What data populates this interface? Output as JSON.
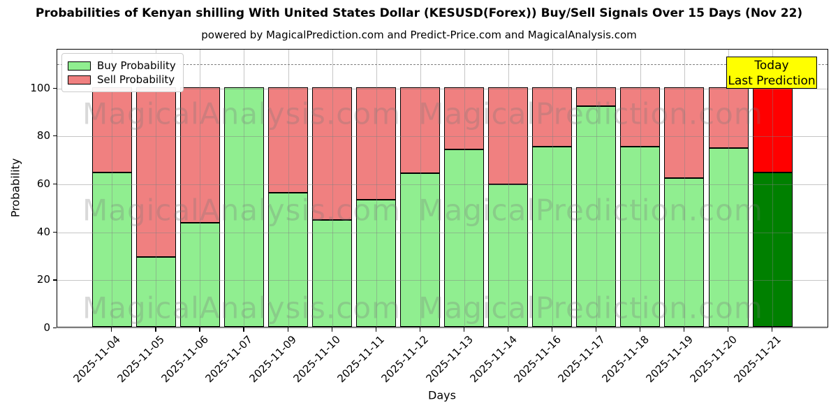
{
  "header": {
    "title": "Probabilities of Kenyan shilling With United States Dollar (KESUSD(Forex)) Buy/Sell Signals Over 15 Days (Nov 22)",
    "subtitle": "powered by MagicalPrediction.com and Predict-Price.com and MagicalAnalysis.com"
  },
  "axes": {
    "x_label": "Days",
    "y_label": "Probability",
    "y_ticks": [
      0,
      20,
      40,
      60,
      80,
      100
    ],
    "y_max": 116.2,
    "dashed_line_y": 110
  },
  "legend": {
    "items": [
      {
        "label": "Buy Probability",
        "color": "#90EE90"
      },
      {
        "label": "Sell Probability",
        "color": "#F08080"
      }
    ]
  },
  "annotation": {
    "line1": "Today",
    "line2": "Last Prediction",
    "bg_color": "#FFFF00"
  },
  "watermarks": {
    "left_text": "MagicalAnalysis.com",
    "right_text": "MagicalPrediction.com"
  },
  "chart_data": {
    "type": "bar",
    "stacked": true,
    "title": "Probabilities of Kenyan shilling With United States Dollar (KESUSD(Forex)) Buy/Sell Signals Over 15 Days (Nov 22)",
    "xlabel": "Days",
    "ylabel": "Probability",
    "ylim": [
      0,
      116.2
    ],
    "grid": true,
    "legend_position": "upper left",
    "categories": [
      "2025-11-04",
      "2025-11-05",
      "2025-11-06",
      "2025-11-07",
      "2025-11-09",
      "2025-11-10",
      "2025-11-11",
      "2025-11-12",
      "2025-11-13",
      "2025-11-14",
      "2025-11-16",
      "2025-11-17",
      "2025-11-18",
      "2025-11-19",
      "2025-11-20",
      "2025-11-21"
    ],
    "series": [
      {
        "name": "Buy Probability",
        "values": [
          64.5,
          29,
          43.5,
          100,
          56,
          44.5,
          53,
          64,
          74,
          59.5,
          75,
          92,
          75,
          62,
          74.5,
          64.5
        ]
      },
      {
        "name": "Sell Probability",
        "values": [
          35.5,
          71,
          56.5,
          0,
          44,
          55.5,
          47,
          36,
          26,
          40.5,
          25,
          8,
          25,
          38,
          25.5,
          35.5
        ]
      }
    ],
    "colors": {
      "buy": "#90EE90",
      "sell": "#F08080",
      "buy_today": "#008000",
      "sell_today": "#FF0000"
    },
    "today_index": 15,
    "threshold_dashed_line": 110
  }
}
